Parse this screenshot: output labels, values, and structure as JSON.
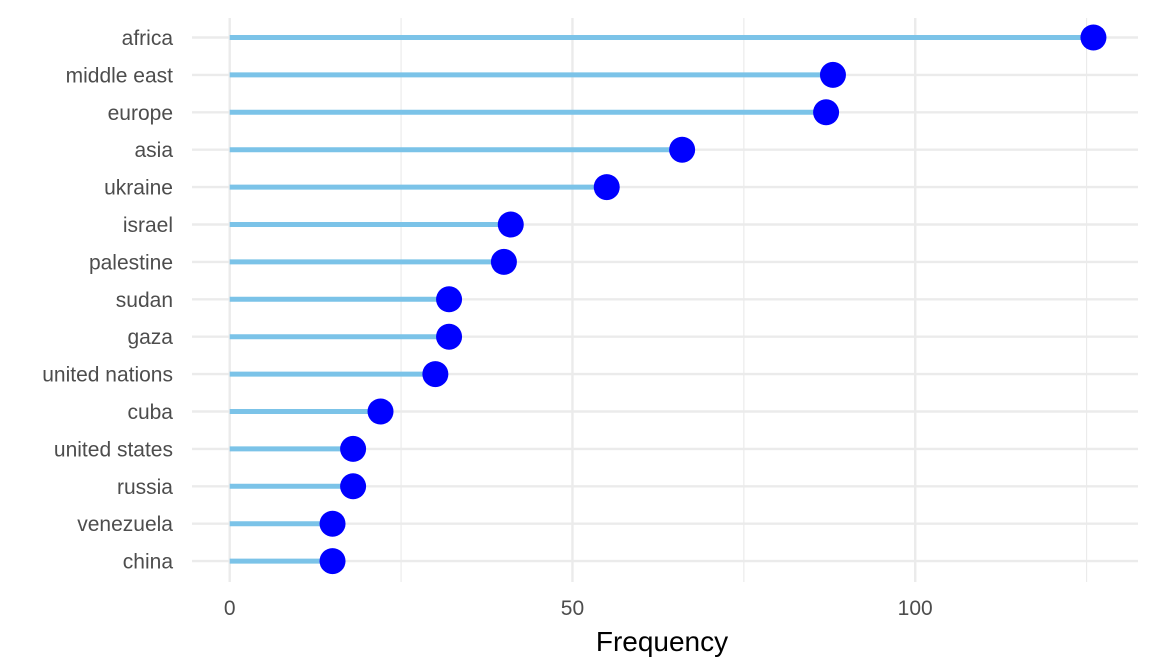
{
  "chart_data": {
    "type": "lollipop",
    "orientation": "horizontal",
    "title": "",
    "xlabel": "Frequency",
    "ylabel": "",
    "xlim": [
      -5.5,
      132.5
    ],
    "x_ticks": [
      0,
      50,
      100
    ],
    "x_tick_labels": [
      "0",
      "50",
      "100"
    ],
    "grid": true,
    "legend": "none",
    "categories": [
      "africa",
      "middle east",
      "europe",
      "asia",
      "ukraine",
      "israel",
      "palestine",
      "sudan",
      "gaza",
      "united nations",
      "cuba",
      "united states",
      "russia",
      "venezuela",
      "china"
    ],
    "values": [
      126,
      88,
      87,
      66,
      55,
      41,
      40,
      32,
      32,
      30,
      22,
      18,
      18,
      15,
      15
    ],
    "colors": {
      "stem": "#7bc3e8",
      "point": "#0000ff",
      "grid": "#ebebeb",
      "tick_text": "#4d4d4d",
      "title_text": "#000000"
    }
  }
}
